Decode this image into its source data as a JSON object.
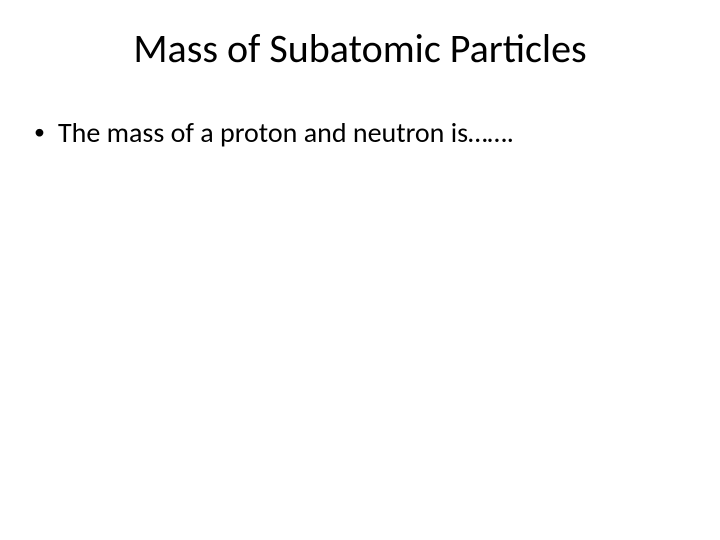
{
  "slide": {
    "title": "Mass of Subatomic Particles",
    "bullets": [
      {
        "marker": "•",
        "text": "The mass of a proton and neutron is……."
      }
    ]
  },
  "style": {
    "background_color": "#ffffff",
    "text_color": "#000000",
    "title_fontsize": 40,
    "body_fontsize": 28,
    "font_family": "Calibri"
  }
}
